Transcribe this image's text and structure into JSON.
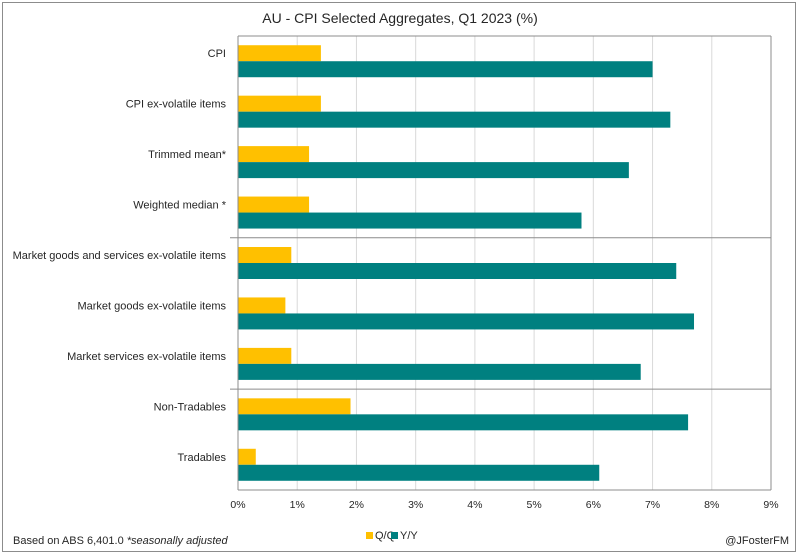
{
  "chart_data": {
    "type": "bar",
    "orientation": "horizontal",
    "title": "AU - CPI Selected Aggregates, Q1 2023 (%)",
    "xlabel": "",
    "ylabel": "",
    "xlim": [
      0,
      9
    ],
    "x_ticks": [
      0,
      1,
      2,
      3,
      4,
      5,
      6,
      7,
      8,
      9
    ],
    "x_tick_labels": [
      "0%",
      "1%",
      "2%",
      "3%",
      "4%",
      "5%",
      "6%",
      "7%",
      "8%",
      "9%"
    ],
    "grid": true,
    "categories": [
      "CPI",
      "CPI ex-volatile items",
      "Trimmed mean*",
      "Weighted median *",
      "Market goods and services ex-volatile items",
      "Market goods ex-volatile items",
      "Market services ex-volatile items",
      "Non-Tradables",
      "Tradables"
    ],
    "group_separators_after": [
      3,
      6
    ],
    "series": [
      {
        "name": "Q/Q",
        "color": "#FFC000",
        "values": [
          1.4,
          1.4,
          1.2,
          1.2,
          0.9,
          0.8,
          0.9,
          1.9,
          0.3
        ]
      },
      {
        "name": "Y/Y",
        "color": "#008080",
        "values": [
          7.0,
          7.3,
          6.6,
          5.8,
          7.4,
          7.7,
          6.8,
          7.6,
          6.1
        ]
      }
    ],
    "legend": {
      "placement": "bottom-center",
      "entries": [
        "Q/Q",
        "Y/Y"
      ]
    }
  },
  "footer": {
    "source_prefix": "Based on ABS 6,401.0 ",
    "source_note": "*seasonally adjusted",
    "credit": "@JFosterFM"
  },
  "colors": {
    "qq": "#FFC000",
    "yy": "#008080",
    "grid": "#d9d9d9",
    "axis": "#8c8c8c"
  }
}
